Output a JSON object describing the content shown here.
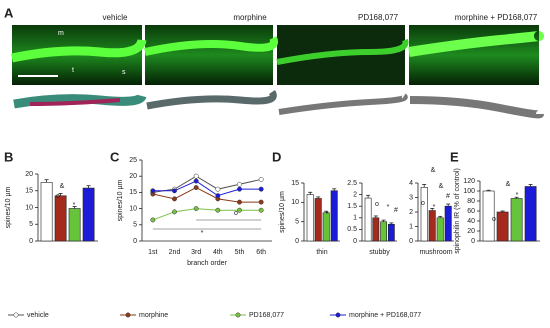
{
  "panel_a": {
    "label": "A",
    "titles": [
      "vehicle",
      "morphine",
      "PD168,077",
      "morphine + PD168,077"
    ],
    "markers": [
      "m",
      "t",
      "s"
    ]
  },
  "chart_data": [
    {
      "type": "bar",
      "label": "B",
      "ylabel": "spines/10 µm",
      "values": [
        17.5,
        13.5,
        9.7,
        15.8
      ],
      "errors": [
        0.8,
        0.7,
        0.6,
        0.7
      ],
      "colors": [
        "#ffffff",
        "#a52a1e",
        "#66c43a",
        "#1c1cd8"
      ],
      "ylim": [
        0,
        20
      ],
      "yticks": [
        0,
        5,
        10,
        15,
        20
      ],
      "annotations": [
        "&",
        "o",
        "*"
      ]
    },
    {
      "type": "line",
      "label": "C",
      "ylabel": "spines/10 µm",
      "xlabel": "branch order",
      "categories": [
        "1st",
        "2nd",
        "3rd",
        "4th",
        "5th",
        "6th"
      ],
      "series": [
        {
          "name": "vehicle",
          "color": "#ffffff",
          "values": [
            15,
            16,
            20,
            16,
            17.5,
            19
          ]
        },
        {
          "name": "morphine",
          "color": "#8b3a1a",
          "values": [
            14.5,
            13,
            16.5,
            13,
            12,
            12
          ]
        },
        {
          "name": "PD168,077",
          "color": "#7ac043",
          "values": [
            6.5,
            9,
            10,
            9.5,
            9.5,
            9.5
          ]
        },
        {
          "name": "morphine + PD168,077",
          "color": "#1c1cd8",
          "values": [
            15.5,
            15.5,
            18.5,
            14,
            16,
            16
          ]
        }
      ],
      "ylim": [
        0,
        25
      ],
      "yticks": [
        0,
        5,
        10,
        15,
        20,
        25
      ],
      "annotations": [
        "*",
        "o"
      ]
    },
    {
      "type": "bar",
      "label": "D",
      "ylabel": "spines/10 µm",
      "xlabel": "thin",
      "values": [
        12,
        11,
        7.3,
        13
      ],
      "errors": [
        0.6,
        0.4,
        0.4,
        0.5
      ],
      "colors": [
        "#ffffff",
        "#a52a1e",
        "#66c43a",
        "#1c1cd8"
      ],
      "ylim": [
        0,
        15
      ],
      "yticks": [
        0,
        5,
        10,
        15
      ],
      "annotations": [
        "*"
      ]
    },
    {
      "type": "bar",
      "xlabel": "stubby",
      "values": [
        1.85,
        1.0,
        0.83,
        0.72
      ],
      "errors": [
        0.12,
        0.08,
        0.07,
        0.06
      ],
      "colors": [
        "#ffffff",
        "#a52a1e",
        "#66c43a",
        "#1c1cd8"
      ],
      "ylim": [
        0,
        2.5
      ],
      "yticks": [
        0,
        0.5,
        1,
        1.5,
        2,
        2.5
      ],
      "annotations": [
        "o",
        "*",
        "#"
      ]
    },
    {
      "type": "bar",
      "xlabel": "mushroom",
      "values": [
        3.7,
        2.1,
        1.6,
        2.4
      ],
      "errors": [
        0.2,
        0.15,
        0.1,
        0.15
      ],
      "colors": [
        "#ffffff",
        "#a52a1e",
        "#66c43a",
        "#1c1cd8"
      ],
      "ylim": [
        0,
        4
      ],
      "yticks": [
        0,
        1,
        2,
        3,
        4
      ],
      "annotations": [
        "&",
        "&",
        "o",
        "*",
        "#"
      ]
    },
    {
      "type": "bar",
      "label": "E",
      "ylabel": "spinophilin IR (% of control)",
      "values": [
        100,
        58,
        85,
        109
      ],
      "errors": [
        1.5,
        2,
        2.5,
        4
      ],
      "colors": [
        "#ffffff",
        "#a52a1e",
        "#66c43a",
        "#1c1cd8"
      ],
      "ylim": [
        0,
        120
      ],
      "yticks": [
        0,
        20,
        40,
        60,
        80,
        100,
        120
      ],
      "annotations": [
        "&",
        "o",
        "*"
      ]
    }
  ]
}
